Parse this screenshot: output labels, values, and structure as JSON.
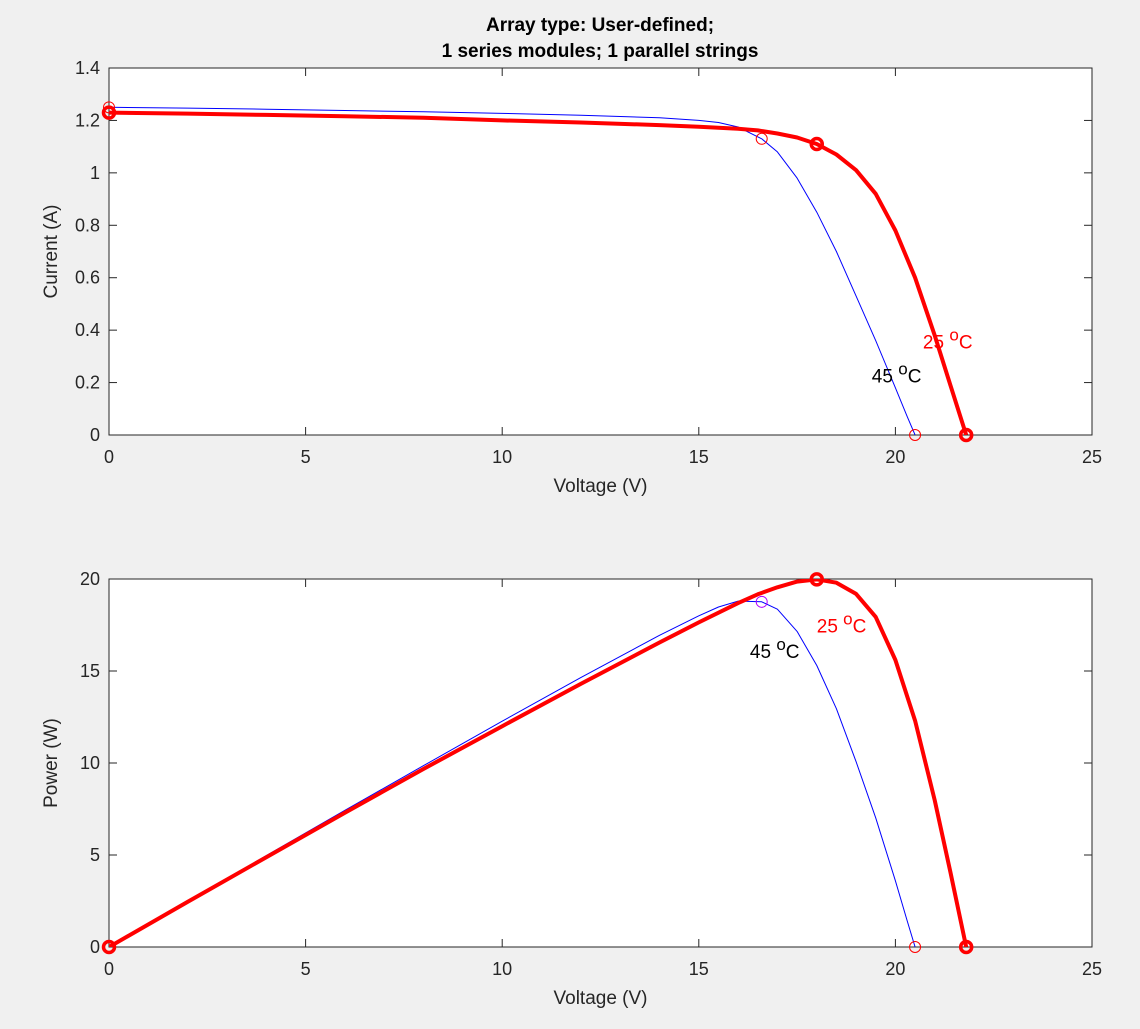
{
  "figure_title_line1": "Array type: User-defined;",
  "figure_title_line2": "1 series modules; 1 parallel strings",
  "colors": {
    "background": "#f0f0f0",
    "axes_bg": "#ffffff",
    "axis": "#262626",
    "series_25C": "#ff0000",
    "series_45C": "#0000ff",
    "marker_45C_power": "#b000ff",
    "label_45C": "#000000"
  },
  "chart_data": [
    {
      "type": "line",
      "name": "current-voltage",
      "title": "Array type: User-defined; 1 series modules; 1 parallel strings",
      "xlabel": "Voltage (V)",
      "ylabel": "Current (A)",
      "xlim": [
        0,
        25
      ],
      "ylim": [
        0,
        1.4
      ],
      "xticks": [
        0,
        5,
        10,
        15,
        20,
        25
      ],
      "yticks": [
        0,
        0.2,
        0.4,
        0.6,
        0.8,
        1,
        1.2,
        1.4
      ],
      "ytick_labels": [
        "0",
        "0.2",
        "0.4",
        "0.6",
        "0.8",
        "1",
        "1.2",
        "1.4"
      ],
      "grid": false,
      "series": [
        {
          "name": "45 °C",
          "color": "#0000ff",
          "style": "thin",
          "x": [
            0,
            2,
            4,
            6,
            8,
            10,
            12,
            14,
            15,
            15.5,
            16,
            16.6,
            17,
            17.5,
            18,
            18.5,
            19,
            19.5,
            20,
            20.3,
            20.5
          ],
          "y": [
            1.25,
            1.247,
            1.243,
            1.238,
            1.233,
            1.227,
            1.22,
            1.21,
            1.2,
            1.192,
            1.175,
            1.13,
            1.08,
            0.98,
            0.85,
            0.7,
            0.53,
            0.36,
            0.18,
            0.07,
            0
          ],
          "markers": [
            {
              "x": 0,
              "y": 1.25
            },
            {
              "x": 16.6,
              "y": 1.13
            },
            {
              "x": 20.5,
              "y": 0
            }
          ]
        },
        {
          "name": "25 °C",
          "color": "#ff0000",
          "style": "thick",
          "x": [
            0,
            2,
            4,
            6,
            8,
            10,
            12,
            14,
            15,
            16,
            16.5,
            17,
            17.5,
            18,
            18.5,
            19,
            19.5,
            20,
            20.5,
            21,
            21.4,
            21.8
          ],
          "y": [
            1.23,
            1.226,
            1.221,
            1.216,
            1.21,
            1.2,
            1.192,
            1.182,
            1.176,
            1.168,
            1.162,
            1.15,
            1.135,
            1.11,
            1.07,
            1.01,
            0.92,
            0.78,
            0.6,
            0.38,
            0.19,
            0
          ],
          "markers": [
            {
              "x": 0,
              "y": 1.23
            },
            {
              "x": 18,
              "y": 1.11
            },
            {
              "x": 21.8,
              "y": 0
            }
          ]
        }
      ],
      "annotations": [
        {
          "text": "25 ",
          "sup": "o",
          "unit": "C",
          "x": 20.7,
          "y": 0.33,
          "color": "#ff0000"
        },
        {
          "text": "45 ",
          "sup": "o",
          "unit": "C",
          "x": 19.4,
          "y": 0.2,
          "color": "#000000"
        }
      ]
    },
    {
      "type": "line",
      "name": "power-voltage",
      "xlabel": "Voltage (V)",
      "ylabel": "Power (W)",
      "xlim": [
        0,
        25
      ],
      "ylim": [
        0,
        20
      ],
      "xticks": [
        0,
        5,
        10,
        15,
        20,
        25
      ],
      "yticks": [
        0,
        5,
        10,
        15,
        20
      ],
      "ytick_labels": [
        "0",
        "5",
        "10",
        "15",
        "20"
      ],
      "grid": false,
      "series": [
        {
          "name": "45 °C",
          "color": "#0000ff",
          "style": "thin",
          "x": [
            0,
            2,
            4,
            6,
            8,
            10,
            12,
            14,
            15,
            15.5,
            16,
            16.6,
            17,
            17.5,
            18,
            18.5,
            19,
            19.5,
            20,
            20.3,
            20.5
          ],
          "y": [
            0,
            2.49,
            4.97,
            7.43,
            9.86,
            12.27,
            14.64,
            16.94,
            18.0,
            18.48,
            18.8,
            18.76,
            18.36,
            17.15,
            15.3,
            12.95,
            10.07,
            7.02,
            3.6,
            1.42,
            0
          ],
          "markers": [
            {
              "x": 0,
              "y": 0
            },
            {
              "x": 16.6,
              "y": 18.76,
              "color": "#b000ff"
            },
            {
              "x": 20.5,
              "y": 0
            }
          ]
        },
        {
          "name": "25 °C",
          "color": "#ff0000",
          "style": "thick",
          "x": [
            0,
            2,
            4,
            6,
            8,
            10,
            12,
            14,
            15,
            16,
            16.5,
            17,
            17.5,
            18,
            18.5,
            19,
            19.5,
            20,
            20.5,
            21,
            21.4,
            21.8
          ],
          "y": [
            0,
            2.45,
            4.88,
            7.3,
            9.68,
            12.0,
            14.3,
            16.55,
            17.64,
            18.69,
            19.17,
            19.55,
            19.86,
            19.98,
            19.8,
            19.19,
            17.94,
            15.6,
            12.3,
            7.98,
            4.07,
            0
          ],
          "markers": [
            {
              "x": 0,
              "y": 0
            },
            {
              "x": 18,
              "y": 19.98
            },
            {
              "x": 21.8,
              "y": 0
            }
          ]
        }
      ],
      "annotations": [
        {
          "text": "25 ",
          "sup": "o",
          "unit": "C",
          "x": 18.0,
          "y": 17.1,
          "color": "#ff0000"
        },
        {
          "text": "45 ",
          "sup": "o",
          "unit": "C",
          "x": 16.3,
          "y": 15.7,
          "color": "#000000"
        }
      ]
    }
  ]
}
